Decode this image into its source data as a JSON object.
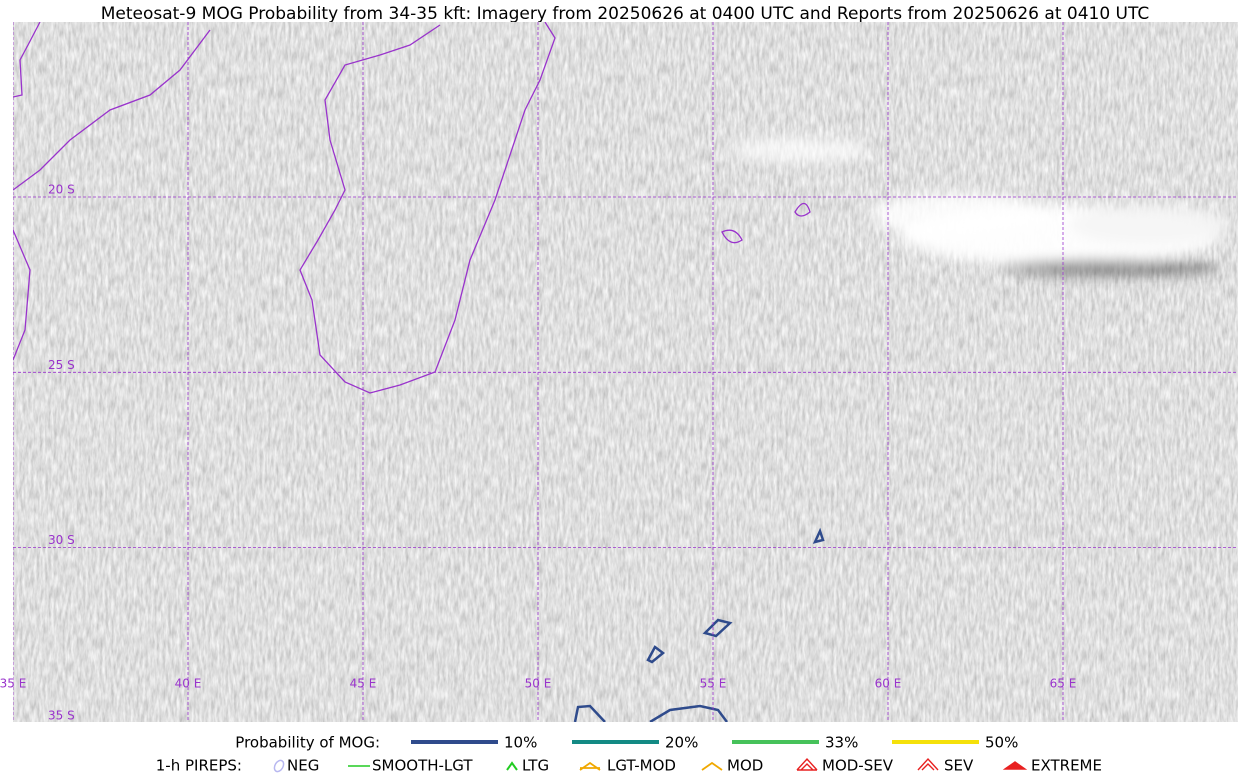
{
  "title": "Meteosat-9 MOG Probability from 34-35 kft: Imagery from 20250626 at 0400 UTC and Reports from 20250626 at 0410 UTC",
  "map": {
    "lat_labels": [
      "20 S",
      "25 S",
      "30 S",
      "35 S"
    ],
    "lon_labels": [
      "35 E",
      "40 E",
      "45 E",
      "50 E",
      "55 E",
      "60 E",
      "65 E"
    ]
  },
  "legend": {
    "probability": {
      "label": "Probability of MOG:",
      "items": [
        {
          "label": "10%",
          "color": "#2f4b8c"
        },
        {
          "label": "20%",
          "color": "#138a84"
        },
        {
          "label": "33%",
          "color": "#46c25a"
        },
        {
          "label": "50%",
          "color": "#f5e10a"
        }
      ]
    },
    "pireps": {
      "label": "1-h PIREPS:",
      "items": [
        {
          "label": "NEG",
          "color": "#b8b8f0"
        },
        {
          "label": "SMOOTH-LGT",
          "color": "#22cc22"
        },
        {
          "label": "LTG",
          "color": "#22cc22"
        },
        {
          "label": "LGT-MOD",
          "color": "#f0a800"
        },
        {
          "label": "MOD",
          "color": "#f0a800"
        },
        {
          "label": "MOD-SEV",
          "color": "#e82020"
        },
        {
          "label": "SEV",
          "color": "#e82020"
        },
        {
          "label": "EXTREME",
          "color": "#e82020"
        }
      ]
    }
  }
}
